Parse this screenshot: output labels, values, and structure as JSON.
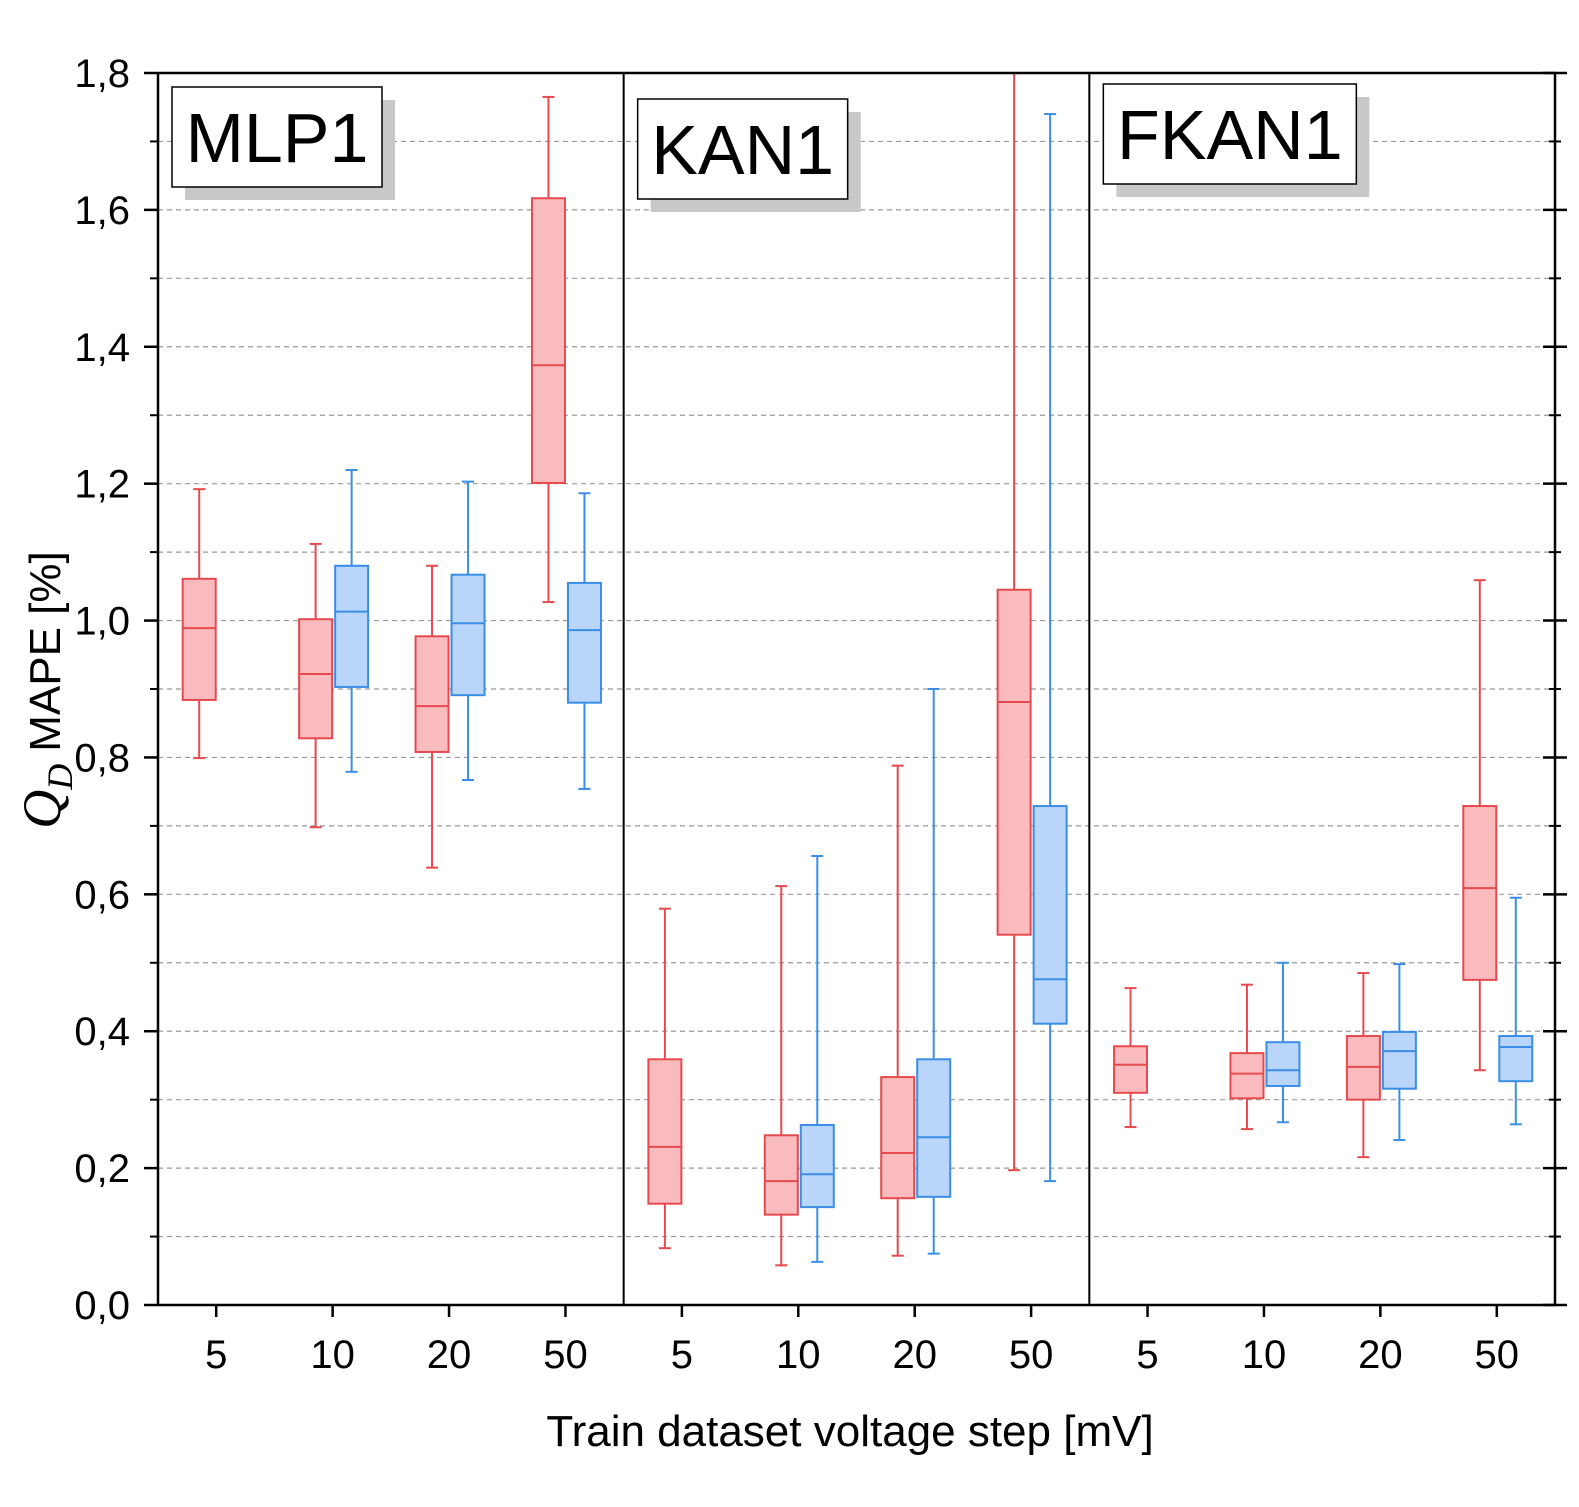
{
  "chart_data": {
    "type": "box",
    "ylabel": {
      "symbol": "Q",
      "subscript": "D",
      "text": "MAPE [%]"
    },
    "xlabel": "Train dataset voltage step [mV]",
    "ylim": [
      0,
      1.8
    ],
    "yticks": [
      {
        "value": 0,
        "label": "0,0"
      },
      {
        "value": 0.2,
        "label": "0,2"
      },
      {
        "value": 0.4,
        "label": "0,4"
      },
      {
        "value": 0.6,
        "label": "0,6"
      },
      {
        "value": 0.8,
        "label": "0,8"
      },
      {
        "value": 1.0,
        "label": "1,0"
      },
      {
        "value": 1.2,
        "label": "1,2"
      },
      {
        "value": 1.4,
        "label": "1,4"
      },
      {
        "value": 1.6,
        "label": "1,6"
      },
      {
        "value": 1.8,
        "label": "1,8"
      }
    ],
    "yminor": [
      0.1,
      0.3,
      0.5,
      0.7,
      0.9,
      1.1,
      1.3,
      1.5,
      1.7
    ],
    "grid": true,
    "panels": [
      {
        "label": "MLP1",
        "categories": [
          "5",
          "10",
          "20",
          "50"
        ],
        "series": [
          {
            "color": "#e64a4f",
            "fill": "#f9bbbd",
            "boxes": [
              {
                "whislo": 0.799,
                "q1": 0.884,
                "med": 0.989,
                "q3": 1.061,
                "whishi": 1.192
              },
              {
                "whislo": 0.698,
                "q1": 0.828,
                "med": 0.922,
                "q3": 1.002,
                "whishi": 1.112
              },
              {
                "whislo": 0.639,
                "q1": 0.808,
                "med": 0.875,
                "q3": 0.977,
                "whishi": 1.08
              },
              {
                "whislo": 1.027,
                "q1": 1.201,
                "med": 1.373,
                "q3": 1.617,
                "whishi": 1.765
              }
            ]
          },
          {
            "color": "#3a8ee6",
            "fill": "#b9d5f9",
            "boxes": [
              null,
              {
                "whislo": 0.779,
                "q1": 0.903,
                "med": 1.013,
                "q3": 1.08,
                "whishi": 1.22
              },
              {
                "whislo": 0.767,
                "q1": 0.891,
                "med": 0.996,
                "q3": 1.067,
                "whishi": 1.203
              },
              {
                "whislo": 0.754,
                "q1": 0.88,
                "med": 0.986,
                "q3": 1.055,
                "whishi": 1.186
              }
            ]
          }
        ]
      },
      {
        "label": "KAN1",
        "categories": [
          "5",
          "10",
          "20",
          "50"
        ],
        "series": [
          {
            "color": "#e64a4f",
            "fill": "#f9bbbd",
            "boxes": [
              {
                "whislo": 0.083,
                "q1": 0.148,
                "med": 0.231,
                "q3": 0.359,
                "whishi": 0.579
              },
              {
                "whislo": 0.058,
                "q1": 0.132,
                "med": 0.181,
                "q3": 0.248,
                "whishi": 0.612
              },
              {
                "whislo": 0.072,
                "q1": 0.156,
                "med": 0.222,
                "q3": 0.333,
                "whishi": 0.788
              },
              {
                "whislo": 0.197,
                "q1": 0.541,
                "med": 0.881,
                "q3": 1.045,
                "whishi": 1.8
              }
            ]
          },
          {
            "color": "#3a8ee6",
            "fill": "#b9d5f9",
            "boxes": [
              null,
              {
                "whislo": 0.063,
                "q1": 0.143,
                "med": 0.191,
                "q3": 0.263,
                "whishi": 0.656
              },
              {
                "whislo": 0.075,
                "q1": 0.158,
                "med": 0.245,
                "q3": 0.359,
                "whishi": 0.9
              },
              {
                "whislo": 0.181,
                "q1": 0.411,
                "med": 0.476,
                "q3": 0.729,
                "whishi": 1.74
              }
            ]
          }
        ]
      },
      {
        "label": "FKAN1",
        "categories": [
          "5",
          "10",
          "20",
          "50"
        ],
        "series": [
          {
            "color": "#e64a4f",
            "fill": "#f9bbbd",
            "boxes": [
              {
                "whislo": 0.26,
                "q1": 0.31,
                "med": 0.351,
                "q3": 0.378,
                "whishi": 0.463
              },
              {
                "whislo": 0.257,
                "q1": 0.302,
                "med": 0.338,
                "q3": 0.368,
                "whishi": 0.468
              },
              {
                "whislo": 0.216,
                "q1": 0.3,
                "med": 0.348,
                "q3": 0.393,
                "whishi": 0.485
              },
              {
                "whislo": 0.343,
                "q1": 0.475,
                "med": 0.609,
                "q3": 0.729,
                "whishi": 1.059
              }
            ]
          },
          {
            "color": "#3a8ee6",
            "fill": "#b9d5f9",
            "boxes": [
              null,
              {
                "whislo": 0.267,
                "q1": 0.32,
                "med": 0.343,
                "q3": 0.384,
                "whishi": 0.5
              },
              {
                "whislo": 0.241,
                "q1": 0.316,
                "med": 0.371,
                "q3": 0.399,
                "whishi": 0.498
              },
              {
                "whislo": 0.264,
                "q1": 0.327,
                "med": 0.377,
                "q3": 0.393,
                "whishi": 0.595
              }
            ]
          }
        ]
      }
    ]
  }
}
